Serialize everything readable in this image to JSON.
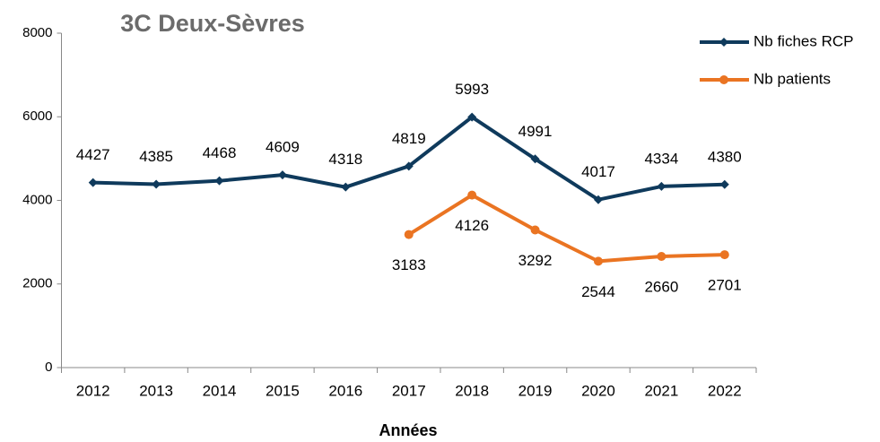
{
  "chart_data": {
    "type": "line",
    "title": "3C Deux-Sèvres",
    "x_label": "Années",
    "categories": [
      "2012",
      "2013",
      "2014",
      "2015",
      "2016",
      "2017",
      "2018",
      "2019",
      "2020",
      "2021",
      "2022"
    ],
    "series": [
      {
        "name": "Nb fiches RCP",
        "color": "#0f3a5c",
        "marker": "diamond",
        "label_position": "above",
        "values": [
          4427,
          4385,
          4468,
          4609,
          4318,
          4819,
          5993,
          4991,
          4017,
          4334,
          4380
        ]
      },
      {
        "name": "Nb patients",
        "color": "#ea7422",
        "marker": "circle",
        "label_position": "below",
        "values": [
          null,
          null,
          null,
          null,
          null,
          3183,
          4126,
          3292,
          2544,
          2660,
          2701
        ]
      }
    ],
    "ylim": [
      0,
      8000
    ],
    "yticks": [
      0,
      2000,
      4000,
      6000,
      8000
    ],
    "grid": false,
    "legend": "top-right"
  }
}
